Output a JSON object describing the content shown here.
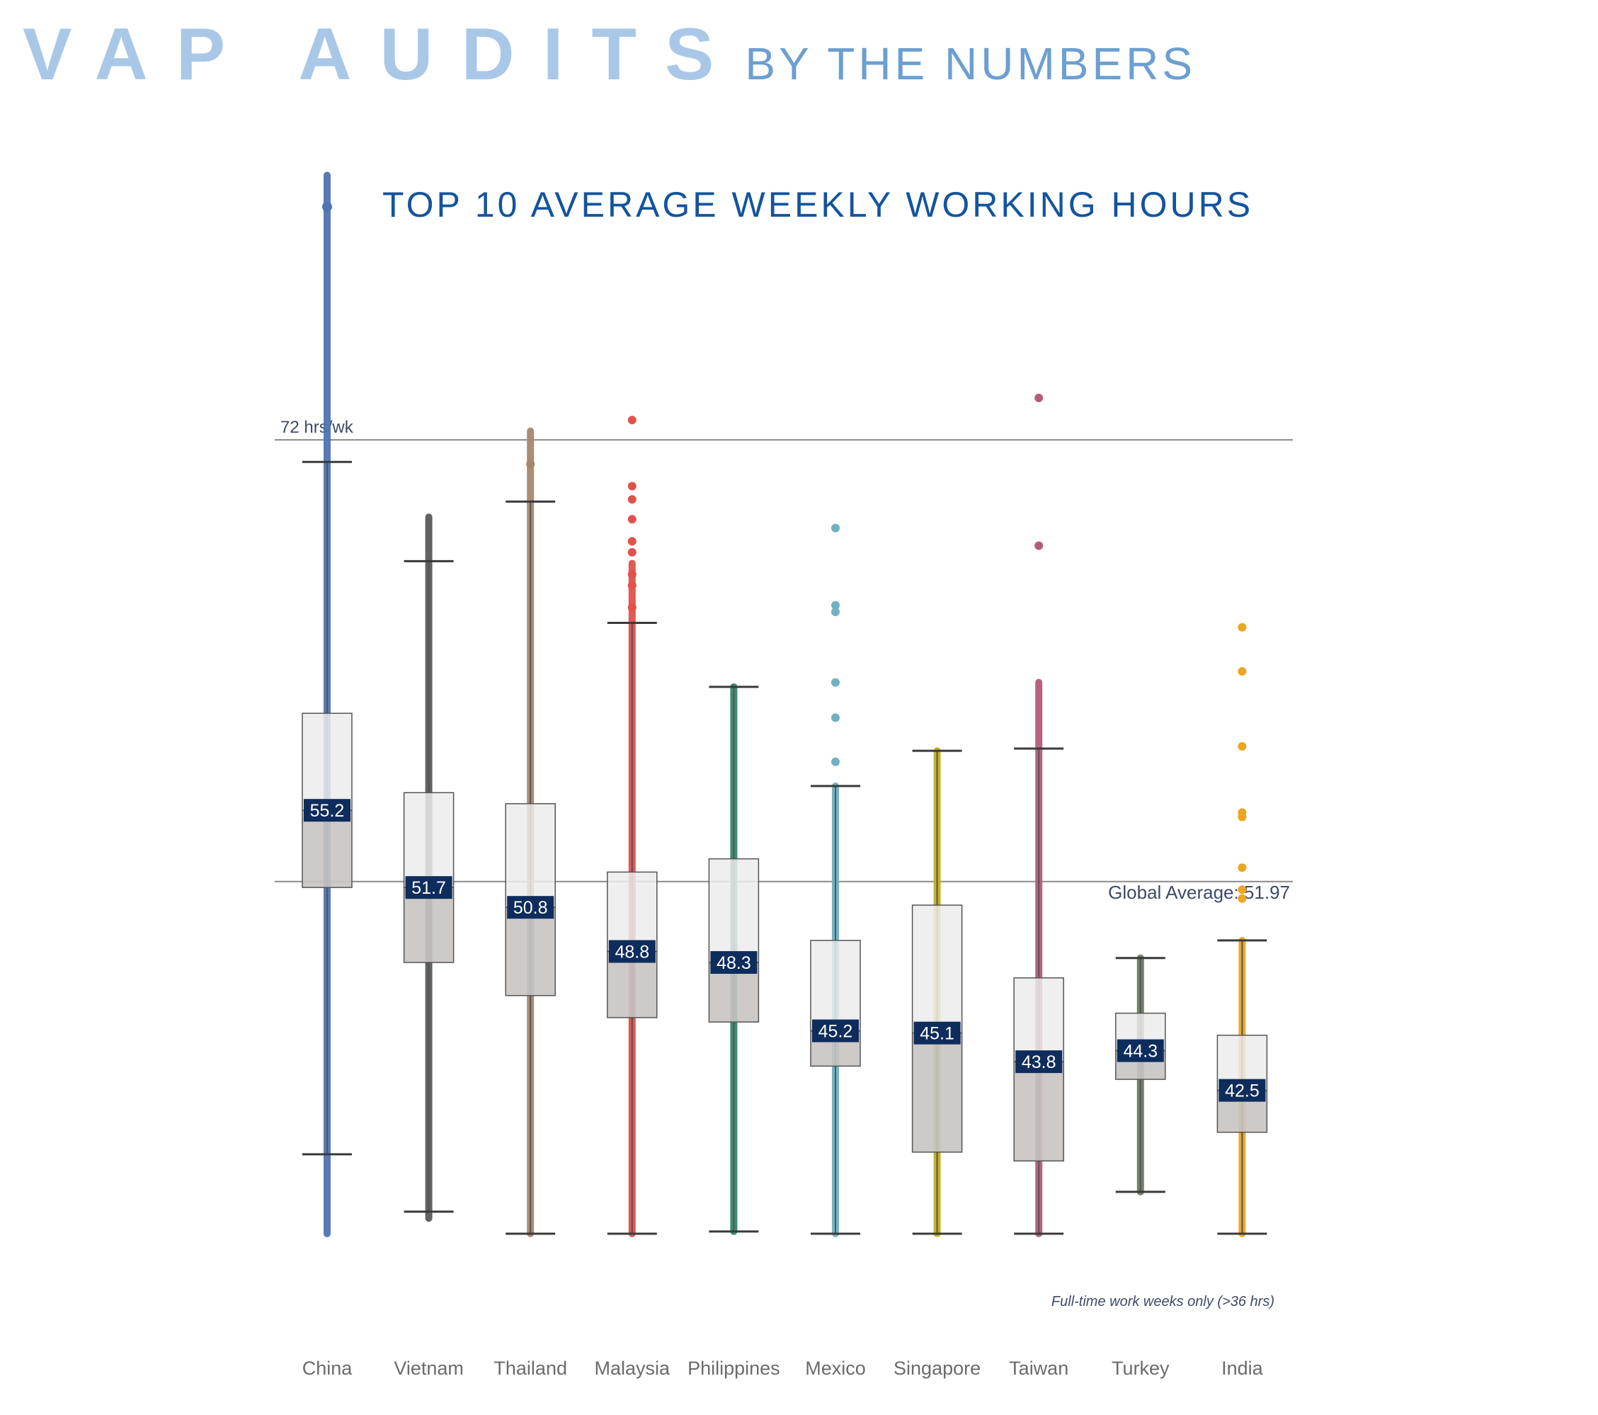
{
  "header": {
    "main": "VAP AUDITS",
    "sub": "BY THE NUMBERS"
  },
  "chart_data": {
    "type": "box",
    "title": "TOP 10 AVERAGE WEEKLY WORKING HOURS",
    "xlabel": "",
    "ylabel": "",
    "ylim": [
      36,
      80
    ],
    "grid": false,
    "note": "Full-time work weeks only (>36 hrs)",
    "reference_lines": [
      {
        "label": "72 hrs/wk",
        "value": 72
      },
      {
        "label": "Global Average: 51.97",
        "value": 51.97
      }
    ],
    "categories": [
      "China",
      "Vietnam",
      "Thailand",
      "Malaysia",
      "Philippines",
      "Mexico",
      "Singapore",
      "Taiwan",
      "Turkey",
      "India"
    ],
    "series": [
      {
        "category": "China",
        "color": "#4f74b3",
        "median": 55.2,
        "q1": 51.7,
        "q3": 59.6,
        "whisker_low": 39.6,
        "whisker_high": 71.0,
        "max_point": 84.0,
        "min_point": 36.0,
        "outliers": []
      },
      {
        "category": "Vietnam",
        "color": "#5a5a5a",
        "median": 51.7,
        "q1": 48.3,
        "q3": 56.0,
        "whisker_low": 37.0,
        "whisker_high": 66.5,
        "max_point": 68.5,
        "min_point": 36.7,
        "outliers": []
      },
      {
        "category": "Thailand",
        "color": "#a8866b",
        "median": 50.8,
        "q1": 46.8,
        "q3": 55.5,
        "whisker_low": 36.0,
        "whisker_high": 69.2,
        "max_point": 72.4,
        "min_point": 36.0,
        "outliers": [
          70.9
        ]
      },
      {
        "category": "Malaysia",
        "color": "#e0524a",
        "median": 48.8,
        "q1": 45.8,
        "q3": 52.4,
        "whisker_low": 36.0,
        "whisker_high": 63.7,
        "max_point": 66.4,
        "min_point": 36.0,
        "outliers": [
          72.9,
          69.9,
          69.3,
          68.4,
          67.4,
          66.9,
          65.9,
          65.4,
          64.4
        ]
      },
      {
        "category": "Philippines",
        "color": "#2f8a68",
        "median": 48.3,
        "q1": 45.6,
        "q3": 53.0,
        "whisker_low": 36.1,
        "whisker_high": 60.8,
        "max_point": 60.8,
        "min_point": 36.1,
        "outliers": []
      },
      {
        "category": "Mexico",
        "color": "#6fb1c2",
        "median": 45.2,
        "q1": 43.6,
        "q3": 49.3,
        "whisker_low": 36.0,
        "whisker_high": 56.3,
        "max_point": 56.3,
        "min_point": 36.0,
        "outliers": [
          68.0,
          64.5,
          64.2,
          61.0,
          59.4,
          57.4
        ]
      },
      {
        "category": "Singapore",
        "color": "#c2b020",
        "median": 45.1,
        "q1": 39.7,
        "q3": 50.9,
        "whisker_low": 36.0,
        "whisker_high": 57.9,
        "max_point": 57.9,
        "min_point": 36.0,
        "outliers": []
      },
      {
        "category": "Taiwan",
        "color": "#b65a7a",
        "median": 43.8,
        "q1": 39.3,
        "q3": 47.6,
        "whisker_low": 36.0,
        "whisker_high": 58.0,
        "max_point": 61.0,
        "min_point": 36.0,
        "outliers": [
          73.9,
          67.2
        ]
      },
      {
        "category": "Turkey",
        "color": "#6a7a62",
        "median": 44.3,
        "q1": 43.0,
        "q3": 46.0,
        "whisker_low": 37.9,
        "whisker_high": 48.5,
        "max_point": 48.5,
        "min_point": 37.9,
        "outliers": []
      },
      {
        "category": "India",
        "color": "#eea522",
        "median": 42.5,
        "q1": 40.6,
        "q3": 45.0,
        "whisker_low": 36.0,
        "whisker_high": 49.3,
        "max_point": 49.3,
        "min_point": 36.0,
        "outliers": [
          63.5,
          61.5,
          58.1,
          55.1,
          54.9,
          52.6,
          51.6,
          51.2
        ]
      }
    ]
  }
}
